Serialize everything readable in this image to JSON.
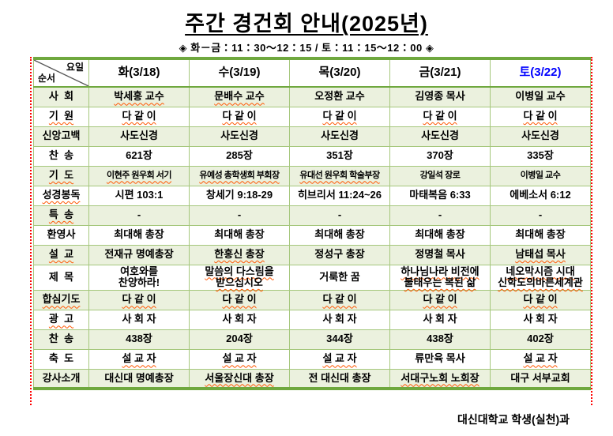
{
  "page": {
    "title": "주간 경건회 안내(2025년)",
    "subtitle": "◈ 화－금：11：30～12：15 / 토：11：15～12：00 ◈",
    "footer": "대신대학교 학생(실천)과"
  },
  "colors": {
    "border_thick": "#6FA83E",
    "border_thin": "#A5C77C",
    "row_fill": "#EBF1DE",
    "saturday_header_text": "#0000FF",
    "pagebreak_line": "#FF0000"
  },
  "table": {
    "corner": {
      "top_right": "요일",
      "bottom_left": "순서"
    },
    "columns": [
      {
        "label": "화(3/18)",
        "color": "#000000"
      },
      {
        "label": "수(3/19)",
        "color": "#000000"
      },
      {
        "label": "목(3/20)",
        "color": "#000000"
      },
      {
        "label": "금(3/21)",
        "color": "#000000"
      },
      {
        "label": "토(3/22)",
        "color": "#0000FF"
      }
    ],
    "rows": [
      {
        "label": {
          "t": "사  회",
          "sq": false
        },
        "cells": [
          {
            "t": "박세홍 교수",
            "sq": true
          },
          {
            "t": "문배수 교수",
            "sq": true
          },
          {
            "t": "오정환 교수",
            "sq": false
          },
          {
            "t": "김영종 목사",
            "sq": false
          },
          {
            "t": "이병일 교수",
            "sq": false
          }
        ]
      },
      {
        "label": {
          "t": "기  원",
          "sq": true
        },
        "cells": [
          {
            "t": "다 같 이",
            "sq": true
          },
          {
            "t": "다 같 이",
            "sq": true
          },
          {
            "t": "다 같 이",
            "sq": true
          },
          {
            "t": "다 같 이",
            "sq": true
          },
          {
            "t": "다 같 이",
            "sq": true
          }
        ]
      },
      {
        "label": {
          "t": "신앙고백",
          "sq": false
        },
        "cells": [
          {
            "t": "사도신경",
            "sq": false
          },
          {
            "t": "사도신경",
            "sq": false
          },
          {
            "t": "사도신경",
            "sq": false
          },
          {
            "t": "사도신경",
            "sq": false
          },
          {
            "t": "사도신경",
            "sq": false
          }
        ]
      },
      {
        "label": {
          "t": "찬  송",
          "sq": false
        },
        "cells": [
          {
            "t": "621장",
            "sq": false
          },
          {
            "t": "285장",
            "sq": false
          },
          {
            "t": "351장",
            "sq": false
          },
          {
            "t": "370장",
            "sq": false
          },
          {
            "t": "335장",
            "sq": false
          }
        ]
      },
      {
        "label": {
          "t": "기  도",
          "sq": true
        },
        "cells": [
          {
            "t": "이현주 원우회 서기",
            "sq": true
          },
          {
            "t": "유예성 총학생회 부회장",
            "sq": true
          },
          {
            "t": "유대선 원우회 학술부장",
            "sq": true
          },
          {
            "t": "강일석 장로",
            "sq": false
          },
          {
            "t": "이병일 교수",
            "sq": false
          }
        ]
      },
      {
        "label": {
          "t": "성경봉독",
          "sq": true
        },
        "cells": [
          {
            "t": "시편 103:1",
            "sq": false
          },
          {
            "t": "창세기 9:18-29",
            "sq": false
          },
          {
            "t": "히브리서 11:24~26",
            "sq": false
          },
          {
            "t": "마태복음 6:33",
            "sq": false
          },
          {
            "t": "에베소서 6:12",
            "sq": false
          }
        ]
      },
      {
        "label": {
          "t": "특  송",
          "sq": true
        },
        "cells": [
          {
            "t": "-",
            "sq": false
          },
          {
            "t": "-",
            "sq": false
          },
          {
            "t": "-",
            "sq": false
          },
          {
            "t": "-",
            "sq": false
          },
          {
            "t": "-",
            "sq": false
          }
        ]
      },
      {
        "label": {
          "t": "환영사",
          "sq": false
        },
        "cells": [
          {
            "t": "최대해 총장",
            "sq": false
          },
          {
            "t": "최대해 총장",
            "sq": false
          },
          {
            "t": "최대해 총장",
            "sq": false
          },
          {
            "t": "최대해 총장",
            "sq": false
          },
          {
            "t": "최대해 총장",
            "sq": false
          }
        ]
      },
      {
        "label": {
          "t": "설  교",
          "sq": true
        },
        "cells": [
          {
            "t": "전재규 명예총장",
            "sq": false
          },
          {
            "t": "한홍신 총장",
            "sq": true
          },
          {
            "t": "정성구 총장",
            "sq": false
          },
          {
            "t": "정명철 목사",
            "sq": false
          },
          {
            "t": "남태섭 목사",
            "sq": true
          }
        ]
      },
      {
        "label": {
          "t": "제  목",
          "sq": false
        },
        "cells": [
          {
            "t": "여호와를\n찬양하라!",
            "sq": false
          },
          {
            "t": "말씀의 다스림을\n받으십시오",
            "sq": true
          },
          {
            "t": "거룩한 꿈",
            "sq": false
          },
          {
            "t": "하나님나라 비전에\n불태우는 복된 삶",
            "sq": true
          },
          {
            "t": "네오막시즘 시대\n신학도의바른세계관",
            "sq": true
          }
        ]
      },
      {
        "label": {
          "t": "합심기도",
          "sq": true
        },
        "cells": [
          {
            "t": "다 같 이",
            "sq": true
          },
          {
            "t": "다 같 이",
            "sq": true
          },
          {
            "t": "다 같 이",
            "sq": true
          },
          {
            "t": "다 같 이",
            "sq": true
          },
          {
            "t": "다 같 이",
            "sq": true
          }
        ]
      },
      {
        "label": {
          "t": "광  고",
          "sq": true
        },
        "cells": [
          {
            "t": "사 회 자",
            "sq": false
          },
          {
            "t": "사 회 자",
            "sq": false
          },
          {
            "t": "사 회 자",
            "sq": false
          },
          {
            "t": "사 회 자",
            "sq": false
          },
          {
            "t": "사 회 자",
            "sq": false
          }
        ]
      },
      {
        "label": {
          "t": "찬  송",
          "sq": false
        },
        "cells": [
          {
            "t": "438장",
            "sq": false
          },
          {
            "t": "204장",
            "sq": false
          },
          {
            "t": "344장",
            "sq": false
          },
          {
            "t": "438장",
            "sq": false
          },
          {
            "t": "402장",
            "sq": false
          }
        ]
      },
      {
        "label": {
          "t": "축  도",
          "sq": false
        },
        "cells": [
          {
            "t": "설 교 자",
            "sq": true
          },
          {
            "t": "설 교 자",
            "sq": true
          },
          {
            "t": "설 교 자",
            "sq": true
          },
          {
            "t": "류만육 목사",
            "sq": false
          },
          {
            "t": "설 교 자",
            "sq": true
          }
        ]
      },
      {
        "label": {
          "t": "강사소개",
          "sq": false
        },
        "cells": [
          {
            "t": "대신대 명예총장",
            "sq": false
          },
          {
            "t": "서울장신대 총장",
            "sq": true
          },
          {
            "t": "전 대신대 총장",
            "sq": false
          },
          {
            "t": "서대구노회 노회장",
            "sq": true
          },
          {
            "t": "대구 서부교회",
            "sq": false
          }
        ]
      }
    ]
  }
}
